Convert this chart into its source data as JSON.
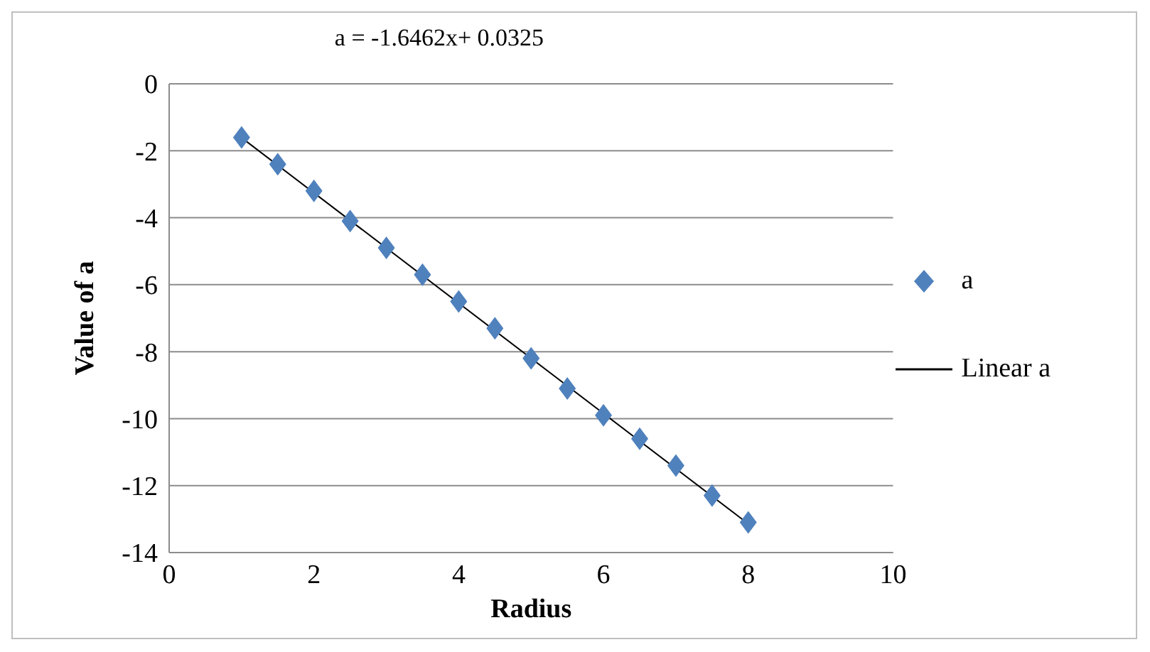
{
  "chart_data": {
    "type": "scatter",
    "title": "a = -1.6462x+ 0.0325",
    "xlabel": "Radius",
    "ylabel": "Value of a",
    "series": [
      {
        "name": "a",
        "color": "#4f81bd",
        "marker": "diamond",
        "x": [
          1,
          1.5,
          2,
          2.5,
          3,
          3.5,
          4,
          4.5,
          5,
          5.5,
          6,
          6.5,
          7,
          7.5,
          8
        ],
        "values": [
          -1.6,
          -2.4,
          -3.2,
          -4.1,
          -4.9,
          -5.7,
          -6.5,
          -7.3,
          -8.2,
          -9.1,
          -9.9,
          -10.6,
          -11.4,
          -12.3,
          -13.1
        ]
      },
      {
        "name": "Linear a",
        "type": "line",
        "color": "#000000",
        "marker": "none",
        "x": [
          1,
          8
        ],
        "values": [
          -1.61,
          -13.14
        ]
      }
    ],
    "xlim": [
      0,
      10
    ],
    "xticks": [
      0,
      2,
      4,
      6,
      8,
      10
    ],
    "ylim": [
      -14,
      0
    ],
    "yticks": [
      -14,
      -12,
      -10,
      -8,
      -6,
      -4,
      -2,
      0
    ],
    "grid": "y",
    "legend": "right"
  }
}
